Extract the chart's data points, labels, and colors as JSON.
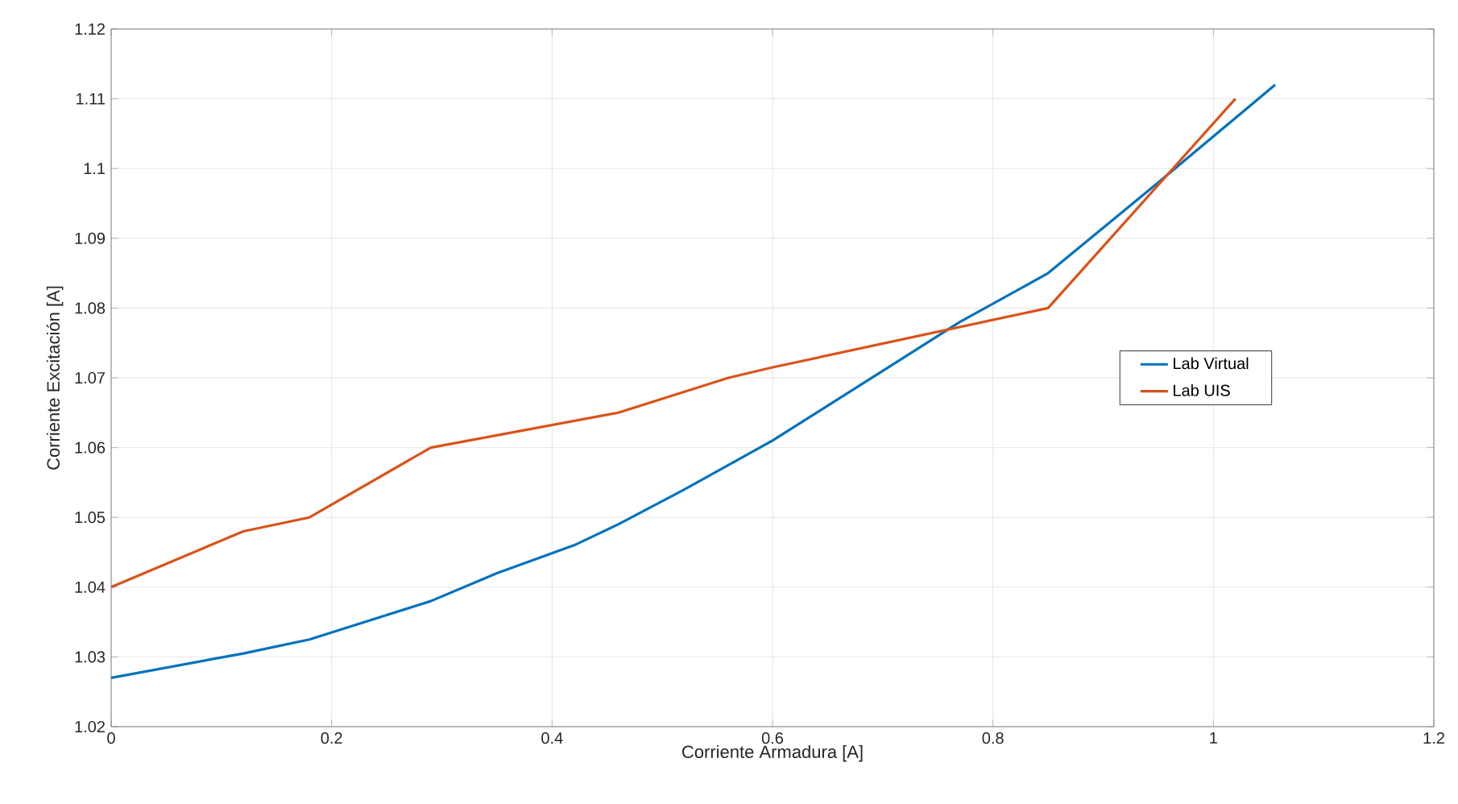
{
  "chart_data": {
    "type": "line",
    "xlabel": "Corriente Armadura [A]",
    "ylabel": "Corriente Excitación [A]",
    "xlim": [
      0,
      1.2
    ],
    "xticks": [
      0,
      0.2,
      0.4,
      0.6,
      0.8,
      1,
      1.2
    ],
    "ylim": [
      1.02,
      1.12
    ],
    "yticks": [
      1.02,
      1.03,
      1.04,
      1.05,
      1.06,
      1.07,
      1.08,
      1.09,
      1.1,
      1.11,
      1.12
    ],
    "grid": true,
    "legend": "right",
    "line_style": "solid",
    "marker": "none",
    "series": [
      {
        "name": "Lab Virtual",
        "color": "#0072bd",
        "x": [
          0,
          0.12,
          0.18,
          0.29,
          0.35,
          0.42,
          0.46,
          0.52,
          0.6,
          0.7,
          0.77,
          0.85,
          0.95,
          1.056
        ],
        "values": [
          1.027,
          1.0305,
          1.0325,
          1.038,
          1.042,
          1.046,
          1.049,
          1.054,
          1.061,
          1.071,
          1.078,
          1.085,
          1.098,
          1.112
        ]
      },
      {
        "name": "Lab UIS",
        "color": "#d95319",
        "x": [
          0,
          0.12,
          0.18,
          0.29,
          0.46,
          0.56,
          0.6,
          0.85,
          1.02
        ],
        "values": [
          1.04,
          1.048,
          1.05,
          1.06,
          1.065,
          1.07,
          1.0715,
          1.08,
          1.11
        ]
      }
    ]
  }
}
